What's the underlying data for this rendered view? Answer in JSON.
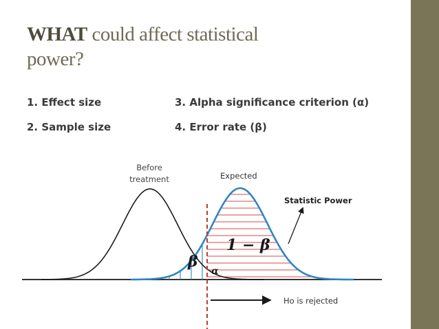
{
  "slide": {
    "title_bold": "WHAT",
    "title_rest": "could affect statistical",
    "title_line2": "power?"
  },
  "factors": [
    {
      "label": "1. Effect size"
    },
    {
      "label": "2. Sample size"
    },
    {
      "label": "3. Alpha significance criterion (α)"
    },
    {
      "label": "4. Error rate (β)"
    }
  ],
  "diagram": {
    "before_label_line1": "Before",
    "before_label_line2": "treatment",
    "expected_label": "Expected",
    "statistic_power_label": "Statistic Power",
    "power_symbol": "1 − β",
    "beta_symbol": "β",
    "alpha_symbol": "α",
    "rejected_label": "Ho is rejected",
    "colors": {
      "expected_curve": "#2e86c1",
      "before_curve": "#1a1a1a",
      "hatch": "#d94a4a",
      "criterion_line": "#c0392b",
      "sidebar": "#7a7557"
    }
  }
}
